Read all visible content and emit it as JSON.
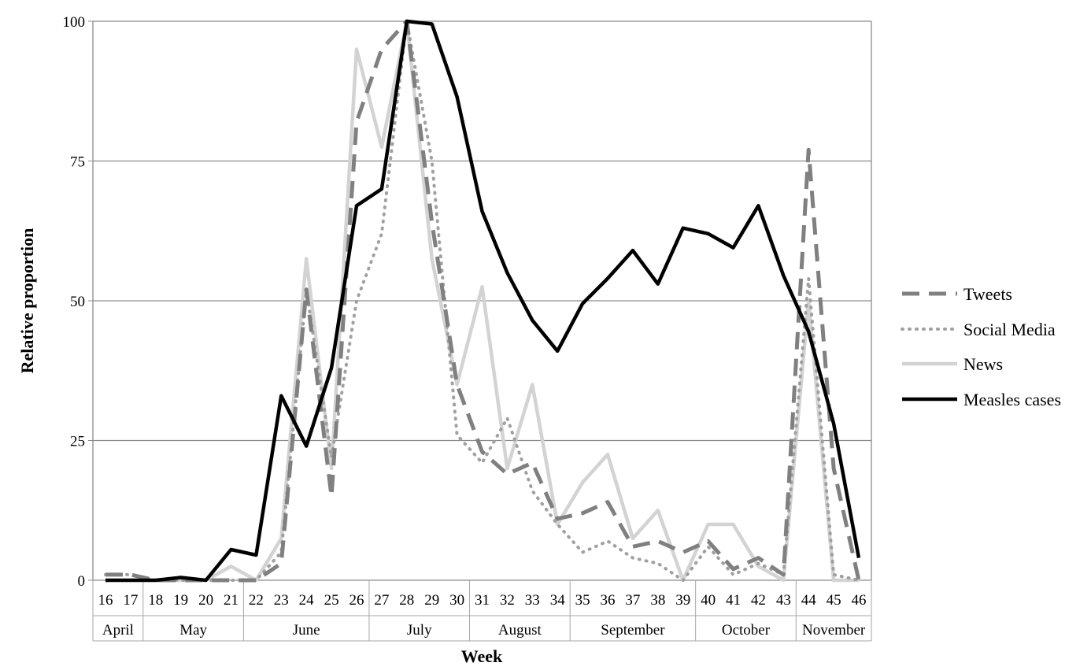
{
  "chart_data": {
    "type": "line",
    "xlabel": "Week",
    "ylabel": "Relative proportion",
    "ylim": [
      0,
      100
    ],
    "yticks": [
      0,
      25,
      50,
      75,
      100
    ],
    "grid": "horizontal",
    "legend_position": "right",
    "weeks": [
      "16",
      "17",
      "18",
      "19",
      "20",
      "21",
      "22",
      "23",
      "24",
      "25",
      "26",
      "27",
      "28",
      "29",
      "30",
      "31",
      "32",
      "33",
      "34",
      "35",
      "36",
      "37",
      "38",
      "39",
      "40",
      "41",
      "42",
      "43",
      "44",
      "45",
      "46"
    ],
    "months": [
      {
        "label": "April",
        "first_week": "16",
        "last_week": "17"
      },
      {
        "label": "May",
        "first_week": "18",
        "last_week": "21"
      },
      {
        "label": "June",
        "first_week": "22",
        "last_week": "26"
      },
      {
        "label": "July",
        "first_week": "27",
        "last_week": "30"
      },
      {
        "label": "August",
        "first_week": "31",
        "last_week": "34"
      },
      {
        "label": "September",
        "first_week": "35",
        "last_week": "39"
      },
      {
        "label": "October",
        "first_week": "40",
        "last_week": "43"
      },
      {
        "label": "November",
        "first_week": "44",
        "last_week": "46"
      }
    ],
    "series": [
      {
        "name": "Tweets",
        "color": "#808080",
        "style": "dashed",
        "values": [
          1,
          1,
          0,
          0,
          0,
          0,
          0,
          3,
          52,
          15,
          82,
          95,
          100,
          64,
          35,
          23,
          19,
          21,
          11,
          12,
          14,
          6,
          7,
          5,
          7,
          2,
          4,
          1,
          77,
          20,
          0
        ]
      },
      {
        "name": "Social Media",
        "color": "#a0a0a0",
        "style": "dotted",
        "values": [
          1,
          1,
          0,
          0,
          0,
          0,
          0,
          5,
          52,
          22,
          50,
          62,
          100,
          75,
          26,
          21,
          29,
          16,
          10,
          5,
          7,
          4,
          3,
          0,
          6,
          1,
          3,
          1,
          54,
          1,
          0
        ]
      },
      {
        "name": "News",
        "color": "#d3d3d3",
        "style": "solid",
        "values": [
          0,
          0,
          0,
          0,
          0,
          2.5,
          0,
          7.5,
          57.5,
          20,
          95,
          77.5,
          100,
          57.5,
          35,
          52.5,
          20,
          35,
          10,
          17.5,
          22.5,
          7.5,
          12.5,
          0,
          10,
          10,
          2.5,
          0,
          50,
          0,
          0
        ]
      },
      {
        "name": "Measles cases",
        "color": "#000000",
        "style": "solid",
        "values": [
          0,
          0,
          0,
          0.5,
          0,
          5.5,
          4.5,
          33,
          24,
          38,
          67,
          70,
          100,
          99.5,
          86.5,
          66,
          55,
          46.5,
          41,
          49.5,
          54,
          59,
          53,
          63,
          62,
          59.5,
          67,
          54.5,
          44.5,
          28,
          4
        ]
      }
    ]
  }
}
